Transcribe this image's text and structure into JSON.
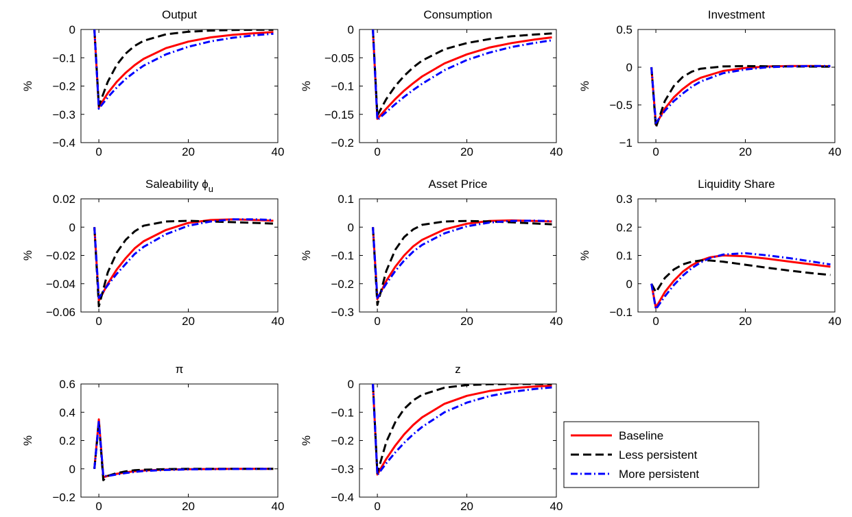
{
  "chart_data": [
    {
      "type": "line",
      "title": "Output",
      "ylabel": "%",
      "xlim": [
        -4,
        40
      ],
      "ylim": [
        -0.4,
        0
      ],
      "xticks": [
        0,
        20,
        40
      ],
      "xtick_labels": [
        "0",
        "20",
        "40"
      ],
      "yticks": [
        -0.4,
        -0.3,
        -0.2,
        -0.1,
        0
      ],
      "ytick_labels": [
        "−0.4",
        "−0.3",
        "−0.2",
        "−0.1",
        "0"
      ],
      "series": [
        {
          "name": "Baseline",
          "color": "#ff0000",
          "style": "solid",
          "x": [
            -1,
            0,
            2,
            4,
            6,
            8,
            10,
            15,
            20,
            25,
            30,
            35,
            39
          ],
          "y": [
            0,
            -0.275,
            -0.225,
            -0.185,
            -0.153,
            -0.126,
            -0.104,
            -0.066,
            -0.043,
            -0.028,
            -0.019,
            -0.013,
            -0.009
          ]
        },
        {
          "name": "Less persistent",
          "color": "#000000",
          "style": "dashed",
          "x": [
            -1,
            0,
            2,
            4,
            6,
            8,
            10,
            15,
            20,
            25,
            30,
            35,
            39
          ],
          "y": [
            0,
            -0.27,
            -0.185,
            -0.125,
            -0.085,
            -0.058,
            -0.04,
            -0.017,
            -0.008,
            -0.004,
            -0.002,
            -0.001,
            -0.001
          ]
        },
        {
          "name": "More persistent",
          "color": "#0000ff",
          "style": "dashdot",
          "x": [
            -1,
            0,
            2,
            4,
            6,
            8,
            10,
            15,
            20,
            25,
            30,
            35,
            39
          ],
          "y": [
            0,
            -0.28,
            -0.24,
            -0.205,
            -0.175,
            -0.15,
            -0.128,
            -0.088,
            -0.061,
            -0.042,
            -0.029,
            -0.02,
            -0.015
          ]
        }
      ]
    },
    {
      "type": "line",
      "title": "Consumption",
      "ylabel": "%",
      "xlim": [
        -4,
        40
      ],
      "ylim": [
        -0.2,
        0
      ],
      "xticks": [
        0,
        20,
        40
      ],
      "xtick_labels": [
        "0",
        "20",
        "40"
      ],
      "yticks": [
        -0.2,
        -0.15,
        -0.1,
        -0.05,
        0
      ],
      "ytick_labels": [
        "−0.2",
        "−0.15",
        "−0.1",
        "−0.05",
        "0"
      ],
      "series": [
        {
          "name": "Baseline",
          "color": "#ff0000",
          "style": "solid",
          "x": [
            -1,
            0,
            2,
            4,
            6,
            8,
            10,
            15,
            20,
            25,
            30,
            35,
            39
          ],
          "y": [
            0,
            -0.158,
            -0.14,
            -0.123,
            -0.108,
            -0.095,
            -0.083,
            -0.06,
            -0.044,
            -0.032,
            -0.024,
            -0.018,
            -0.014
          ]
        },
        {
          "name": "Less persistent",
          "color": "#000000",
          "style": "dashed",
          "x": [
            -1,
            0,
            2,
            4,
            6,
            8,
            10,
            15,
            20,
            25,
            30,
            35,
            39
          ],
          "y": [
            0,
            -0.152,
            -0.123,
            -0.1,
            -0.082,
            -0.067,
            -0.055,
            -0.035,
            -0.024,
            -0.017,
            -0.012,
            -0.009,
            -0.007
          ]
        },
        {
          "name": "More persistent",
          "color": "#0000ff",
          "style": "dashdot",
          "x": [
            -1,
            0,
            2,
            4,
            6,
            8,
            10,
            15,
            20,
            25,
            30,
            35,
            39
          ],
          "y": [
            0,
            -0.16,
            -0.146,
            -0.132,
            -0.119,
            -0.107,
            -0.096,
            -0.072,
            -0.054,
            -0.041,
            -0.031,
            -0.024,
            -0.019
          ]
        }
      ]
    },
    {
      "type": "line",
      "title": "Investment",
      "ylabel": "%",
      "xlim": [
        -4,
        40
      ],
      "ylim": [
        -1,
        0.5
      ],
      "xticks": [
        0,
        20,
        40
      ],
      "xtick_labels": [
        "0",
        "20",
        "40"
      ],
      "yticks": [
        -1,
        -0.5,
        0,
        0.5
      ],
      "ytick_labels": [
        "−1",
        "−0.5",
        "0",
        "0.5"
      ],
      "series": [
        {
          "name": "Baseline",
          "color": "#ff0000",
          "style": "solid",
          "x": [
            -1,
            0,
            2,
            4,
            6,
            8,
            10,
            15,
            20,
            25,
            30,
            35,
            39
          ],
          "y": [
            0,
            -0.76,
            -0.55,
            -0.4,
            -0.29,
            -0.2,
            -0.14,
            -0.05,
            -0.01,
            0.01,
            0.015,
            0.015,
            0.012
          ]
        },
        {
          "name": "Less persistent",
          "color": "#000000",
          "style": "dashed",
          "x": [
            -1,
            0,
            2,
            4,
            6,
            8,
            10,
            15,
            20,
            25,
            30,
            35,
            39
          ],
          "y": [
            0,
            -0.8,
            -0.45,
            -0.25,
            -0.13,
            -0.06,
            -0.02,
            0.01,
            0.015,
            0.012,
            0.01,
            0.008,
            0.006
          ]
        },
        {
          "name": "More persistent",
          "color": "#0000ff",
          "style": "dashdot",
          "x": [
            -1,
            0,
            2,
            4,
            6,
            8,
            10,
            15,
            20,
            25,
            30,
            35,
            39
          ],
          "y": [
            0,
            -0.74,
            -0.58,
            -0.45,
            -0.35,
            -0.26,
            -0.19,
            -0.08,
            -0.03,
            0.0,
            0.01,
            0.015,
            0.015
          ]
        }
      ]
    },
    {
      "type": "line",
      "title": "Saleability ϕ",
      "title_subscript": "u",
      "ylabel": "%",
      "xlim": [
        -4,
        40
      ],
      "ylim": [
        -0.06,
        0.02
      ],
      "xticks": [
        0,
        20,
        40
      ],
      "xtick_labels": [
        "0",
        "20",
        "40"
      ],
      "yticks": [
        -0.06,
        -0.04,
        -0.02,
        0,
        0.02
      ],
      "ytick_labels": [
        "−0.06",
        "−0.04",
        "−0.02",
        "0",
        "0.02"
      ],
      "series": [
        {
          "name": "Baseline",
          "color": "#ff0000",
          "style": "solid",
          "x": [
            -1,
            0,
            2,
            4,
            6,
            8,
            10,
            15,
            20,
            25,
            30,
            35,
            39
          ],
          "y": [
            0,
            -0.052,
            -0.04,
            -0.03,
            -0.022,
            -0.015,
            -0.01,
            -0.002,
            0.003,
            0.005,
            0.0055,
            0.005,
            0.0045
          ]
        },
        {
          "name": "Less persistent",
          "color": "#000000",
          "style": "dashed",
          "x": [
            -1,
            0,
            2,
            4,
            6,
            8,
            10,
            15,
            20,
            25,
            30,
            35,
            39
          ],
          "y": [
            0,
            -0.056,
            -0.032,
            -0.018,
            -0.009,
            -0.003,
            0.001,
            0.004,
            0.0045,
            0.004,
            0.0035,
            0.003,
            0.0025
          ]
        },
        {
          "name": "More persistent",
          "color": "#0000ff",
          "style": "dashdot",
          "x": [
            -1,
            0,
            2,
            4,
            6,
            8,
            10,
            15,
            20,
            25,
            30,
            35,
            39
          ],
          "y": [
            0,
            -0.05,
            -0.041,
            -0.033,
            -0.026,
            -0.019,
            -0.014,
            -0.005,
            0.001,
            0.004,
            0.0055,
            0.0055,
            0.005
          ]
        }
      ]
    },
    {
      "type": "line",
      "title": "Asset Price",
      "ylabel": "%",
      "xlim": [
        -4,
        40
      ],
      "ylim": [
        -0.3,
        0.1
      ],
      "xticks": [
        0,
        20,
        40
      ],
      "xtick_labels": [
        "0",
        "20",
        "40"
      ],
      "yticks": [
        -0.3,
        -0.2,
        -0.1,
        0,
        0.1
      ],
      "ytick_labels": [
        "−0.3",
        "−0.2",
        "−0.1",
        "0",
        "0.1"
      ],
      "series": [
        {
          "name": "Baseline",
          "color": "#ff0000",
          "style": "solid",
          "x": [
            -1,
            0,
            2,
            4,
            6,
            8,
            10,
            15,
            20,
            25,
            30,
            35,
            39
          ],
          "y": [
            0,
            -0.255,
            -0.19,
            -0.14,
            -0.1,
            -0.068,
            -0.045,
            -0.008,
            0.012,
            0.022,
            0.024,
            0.022,
            0.02
          ]
        },
        {
          "name": "Less persistent",
          "color": "#000000",
          "style": "dashed",
          "x": [
            -1,
            0,
            2,
            4,
            6,
            8,
            10,
            15,
            20,
            25,
            30,
            35,
            39
          ],
          "y": [
            0,
            -0.275,
            -0.155,
            -0.08,
            -0.035,
            -0.008,
            0.008,
            0.02,
            0.022,
            0.02,
            0.017,
            0.013,
            0.01
          ]
        },
        {
          "name": "More persistent",
          "color": "#0000ff",
          "style": "dashdot",
          "x": [
            -1,
            0,
            2,
            4,
            6,
            8,
            10,
            15,
            20,
            25,
            30,
            35,
            39
          ],
          "y": [
            0,
            -0.25,
            -0.2,
            -0.155,
            -0.118,
            -0.087,
            -0.063,
            -0.022,
            0.003,
            0.016,
            0.022,
            0.023,
            0.021
          ]
        }
      ]
    },
    {
      "type": "line",
      "title": "Liquidity Share",
      "ylabel": "%",
      "xlim": [
        -4,
        40
      ],
      "ylim": [
        -0.1,
        0.3
      ],
      "xticks": [
        0,
        20,
        40
      ],
      "xtick_labels": [
        "0",
        "20",
        "40"
      ],
      "yticks": [
        -0.1,
        0,
        0.1,
        0.2,
        0.3
      ],
      "ytick_labels": [
        "−0.1",
        "0",
        "0.1",
        "0.2",
        "0.3"
      ],
      "series": [
        {
          "name": "Baseline",
          "color": "#ff0000",
          "style": "solid",
          "x": [
            -1,
            0,
            2,
            4,
            6,
            8,
            10,
            12,
            15,
            20,
            25,
            30,
            35,
            39
          ],
          "y": [
            0,
            -0.085,
            -0.03,
            0.01,
            0.042,
            0.065,
            0.082,
            0.093,
            0.1,
            0.097,
            0.088,
            0.078,
            0.068,
            0.06
          ]
        },
        {
          "name": "Less persistent",
          "color": "#000000",
          "style": "dashed",
          "x": [
            -1,
            0,
            2,
            4,
            6,
            8,
            10,
            12,
            15,
            20,
            25,
            30,
            35,
            39
          ],
          "y": [
            0,
            -0.03,
            0.02,
            0.05,
            0.068,
            0.078,
            0.082,
            0.082,
            0.078,
            0.067,
            0.056,
            0.046,
            0.037,
            0.031
          ]
        },
        {
          "name": "More persistent",
          "color": "#0000ff",
          "style": "dashdot",
          "x": [
            -1,
            0,
            2,
            4,
            6,
            8,
            10,
            12,
            15,
            20,
            25,
            30,
            35,
            39
          ],
          "y": [
            0,
            -0.09,
            -0.045,
            -0.005,
            0.028,
            0.055,
            0.075,
            0.09,
            0.103,
            0.108,
            0.1,
            0.09,
            0.078,
            0.068
          ]
        }
      ]
    },
    {
      "type": "line",
      "title": "π",
      "ylabel": "%",
      "xlim": [
        -4,
        40
      ],
      "ylim": [
        -0.2,
        0.6
      ],
      "xticks": [
        0,
        20,
        40
      ],
      "xtick_labels": [
        "0",
        "20",
        "40"
      ],
      "yticks": [
        -0.2,
        0,
        0.2,
        0.4,
        0.6
      ],
      "ytick_labels": [
        "−0.2",
        "0",
        "0.2",
        "0.4",
        "0.6"
      ],
      "series": [
        {
          "name": "Baseline",
          "color": "#ff0000",
          "style": "solid",
          "x": [
            -1,
            0,
            1,
            2,
            4,
            6,
            8,
            10,
            15,
            20,
            30,
            39
          ],
          "y": [
            0,
            0.35,
            -0.06,
            -0.05,
            -0.035,
            -0.025,
            -0.017,
            -0.012,
            -0.005,
            -0.002,
            0,
            0
          ]
        },
        {
          "name": "Less persistent",
          "color": "#000000",
          "style": "dashed",
          "x": [
            -1,
            0,
            1,
            2,
            4,
            6,
            8,
            10,
            15,
            20,
            30,
            39
          ],
          "y": [
            0,
            0.33,
            -0.08,
            -0.05,
            -0.03,
            -0.018,
            -0.01,
            -0.006,
            -0.002,
            0,
            0,
            0
          ]
        },
        {
          "name": "More persistent",
          "color": "#0000ff",
          "style": "dashdot",
          "x": [
            -1,
            0,
            1,
            2,
            4,
            6,
            8,
            10,
            15,
            20,
            30,
            39
          ],
          "y": [
            0,
            0.34,
            -0.05,
            -0.05,
            -0.04,
            -0.03,
            -0.022,
            -0.016,
            -0.008,
            -0.004,
            -0.001,
            0
          ]
        }
      ]
    },
    {
      "type": "line",
      "title": "z",
      "ylabel": "%",
      "xlim": [
        -4,
        40
      ],
      "ylim": [
        -0.4,
        0
      ],
      "xticks": [
        0,
        20,
        40
      ],
      "xtick_labels": [
        "0",
        "20",
        "40"
      ],
      "yticks": [
        -0.4,
        -0.3,
        -0.2,
        -0.1,
        0
      ],
      "ytick_labels": [
        "−0.4",
        "−0.3",
        "−0.2",
        "−0.1",
        "0"
      ],
      "series": [
        {
          "name": "Baseline",
          "color": "#ff0000",
          "style": "solid",
          "x": [
            -1,
            0,
            2,
            4,
            6,
            8,
            10,
            15,
            20,
            25,
            30,
            35,
            39
          ],
          "y": [
            0,
            -0.32,
            -0.265,
            -0.218,
            -0.178,
            -0.145,
            -0.118,
            -0.07,
            -0.042,
            -0.025,
            -0.015,
            -0.009,
            -0.006
          ]
        },
        {
          "name": "Less persistent",
          "color": "#000000",
          "style": "dashed",
          "x": [
            -1,
            0,
            2,
            4,
            6,
            8,
            10,
            15,
            20,
            25,
            30,
            35,
            39
          ],
          "y": [
            0,
            -0.315,
            -0.205,
            -0.135,
            -0.088,
            -0.058,
            -0.038,
            -0.013,
            -0.004,
            -0.001,
            0,
            0,
            0
          ]
        },
        {
          "name": "More persistent",
          "color": "#0000ff",
          "style": "dashdot",
          "x": [
            -1,
            0,
            2,
            4,
            6,
            8,
            10,
            15,
            20,
            25,
            30,
            35,
            39
          ],
          "y": [
            0,
            -0.322,
            -0.28,
            -0.242,
            -0.208,
            -0.178,
            -0.152,
            -0.1,
            -0.066,
            -0.043,
            -0.028,
            -0.018,
            -0.012
          ]
        }
      ]
    }
  ],
  "legend": {
    "placement": "bottom-right",
    "entries": [
      {
        "label": "Baseline",
        "color": "#ff0000",
        "style": "solid"
      },
      {
        "label": "Less persistent",
        "color": "#000000",
        "style": "dashed"
      },
      {
        "label": "More persistent",
        "color": "#0000ff",
        "style": "dashdot"
      }
    ]
  }
}
